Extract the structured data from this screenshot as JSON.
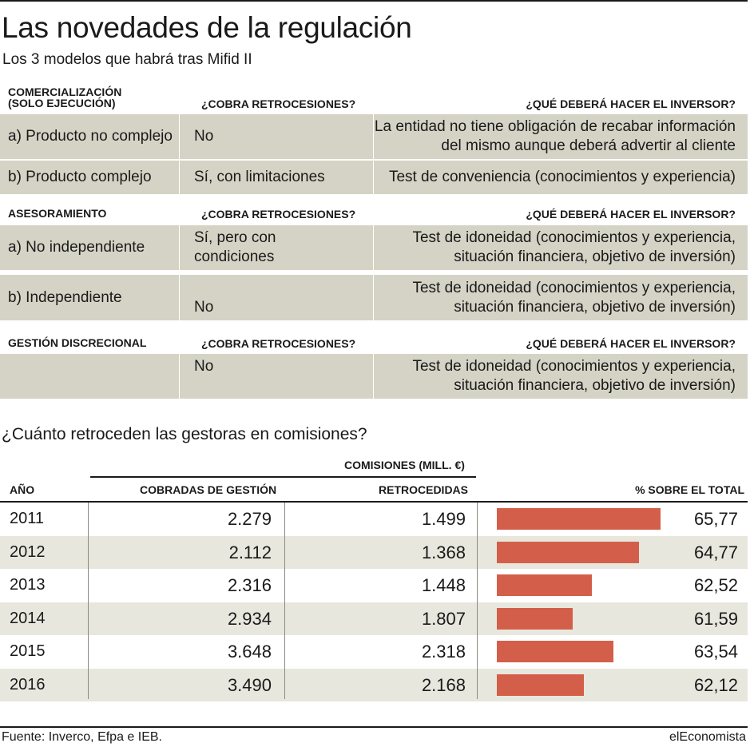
{
  "title": "Las novedades de la regulación",
  "subtitle": "Los 3 modelos que habrá tras Mifid II",
  "sections": [
    {
      "header": {
        "col1_line1": "COMERCIALIZACIÓN",
        "col1_line2": "(SOLO EJECUCIÓN)",
        "col2": "¿COBRA RETROCESIONES?",
        "col3": "¿QUÉ DEBERÁ HACER EL INVERSOR?"
      },
      "rows": [
        {
          "label": "a) Producto no complejo",
          "cobra": "No",
          "action_line1": "La entidad no tiene obligación de recabar información",
          "action_line2": "del mismo aunque deberá advertir al cliente"
        },
        {
          "label": "b) Producto complejo",
          "cobra": "Sí, con limitaciones",
          "action_line1": "Test de conveniencia (conocimientos y experiencia)",
          "action_line2": ""
        }
      ]
    },
    {
      "header": {
        "col1_line1": "ASESORAMIENTO",
        "col1_line2": "",
        "col2": "¿COBRA RETROCESIONES?",
        "col3": "¿QUÉ DEBERÁ HACER EL INVERSOR?"
      },
      "rows": [
        {
          "label": "a) No independiente",
          "cobra_line1": "Sí, pero con",
          "cobra_line2": "condiciones",
          "action_line1": "Test de idoneidad (conocimientos y experiencia,",
          "action_line2": "situación financiera, objetivo de inversión)"
        },
        {
          "label": "b) Independiente",
          "cobra": "No",
          "action_line1": "Test de idoneidad (conocimientos y experiencia,",
          "action_line2": "situación financiera, objetivo de inversión)"
        }
      ]
    },
    {
      "header": {
        "col1_line1": "GESTIÓN DISCRECIONAL",
        "col1_line2": "",
        "col2": "¿COBRA RETROCESIONES?",
        "col3": "¿QUÉ DEBERÁ HACER EL INVERSOR?"
      },
      "rows": [
        {
          "label": "",
          "cobra": "No",
          "action_line1": "Test de idoneidad (conocimientos y experiencia,",
          "action_line2": "situación financiera, objetivo de inversión)"
        }
      ]
    }
  ],
  "question": "¿Cuánto retroceden las gestoras en comisiones?",
  "table_headers": {
    "group": "COMISIONES (MILL. €)",
    "year": "AÑO",
    "cobradas": "COBRADAS DE GESTIÓN",
    "retrocedidas": "RETROCEDIDAS",
    "pct": "% SOBRE EL TOTAL"
  },
  "chart_data": {
    "type": "bar",
    "categories": [
      "2011",
      "2012",
      "2013",
      "2014",
      "2015",
      "2016"
    ],
    "series": [
      {
        "name": "COBRADAS DE GESTIÓN",
        "values": [
          2279,
          2112,
          2316,
          2934,
          3648,
          3490
        ],
        "labels": [
          "2.279",
          "2.112",
          "2.316",
          "2.934",
          "3.648",
          "3.490"
        ]
      },
      {
        "name": "RETROCEDIDAS",
        "values": [
          1499,
          1368,
          1448,
          1807,
          2318,
          2168
        ],
        "labels": [
          "1.499",
          "1.368",
          "1.448",
          "1.807",
          "2.318",
          "2.168"
        ]
      },
      {
        "name": "% SOBRE EL TOTAL",
        "values": [
          65.77,
          64.77,
          62.52,
          61.59,
          63.54,
          62.12
        ],
        "labels": [
          "65,77",
          "64,77",
          "62,52",
          "61,59",
          "63,54",
          "62,12"
        ]
      }
    ],
    "bar_series": "% SOBRE EL TOTAL",
    "xlim": [
      58,
      66.5
    ],
    "bar_color": "#d35f4a",
    "row_shade_color": "#e8e7de"
  },
  "colors": {
    "table_fill": "#d5d3c5",
    "bar": "#d35f4a"
  },
  "footer": {
    "source": "Fuente: Inverco, Efpa e IEB.",
    "brand": "elEconomista"
  }
}
